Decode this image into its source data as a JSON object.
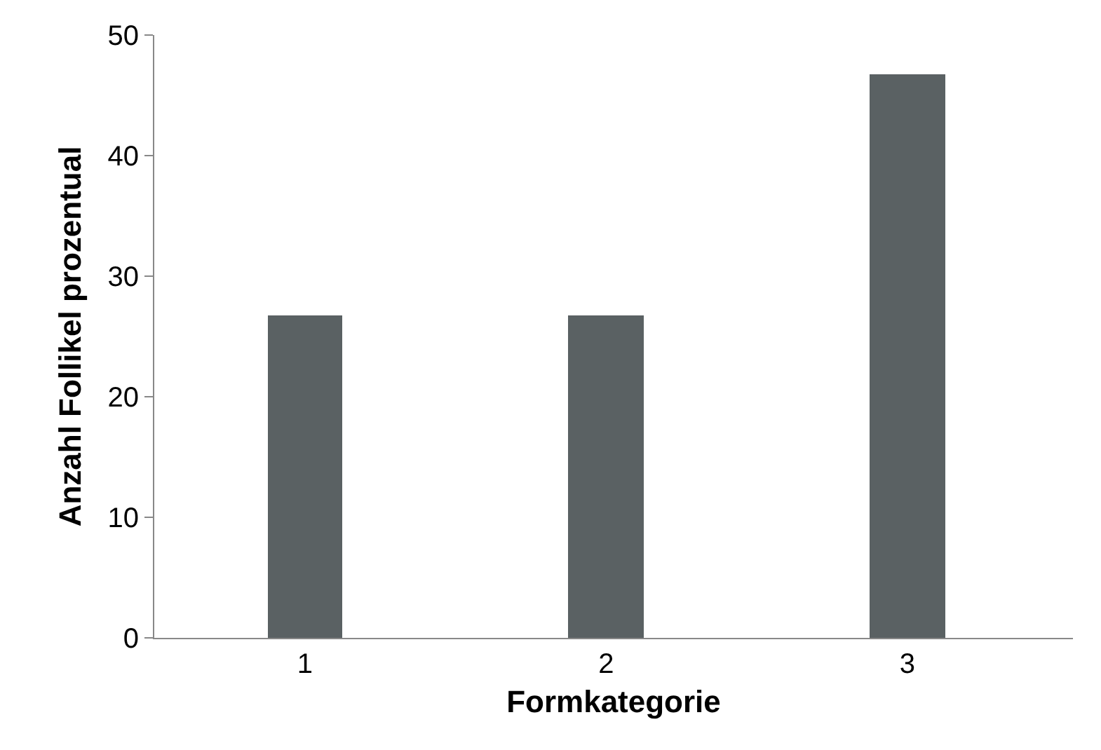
{
  "chart_data": {
    "type": "bar",
    "xlabel": "Formkategorie",
    "ylabel": "Anzahl Follikel prozentual",
    "categories": [
      "1",
      "2",
      "3"
    ],
    "values": [
      26.7,
      26.7,
      46.7
    ],
    "color": "#5a6163",
    "ylim": [
      0,
      50
    ],
    "yticks": [
      0,
      10,
      20,
      30,
      40,
      50
    ]
  }
}
